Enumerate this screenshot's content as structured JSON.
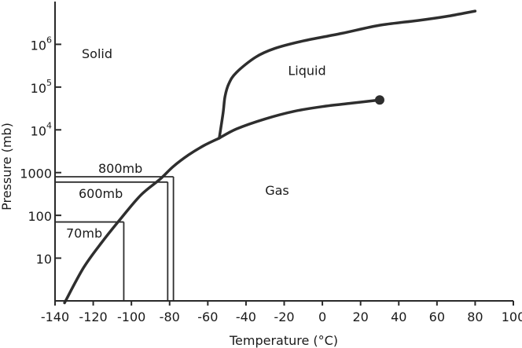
{
  "chart_data": {
    "type": "line",
    "title": "",
    "xlabel": "Temperature (°C)",
    "ylabel": "Pressure (mb)",
    "x_ticks": [
      -140,
      -120,
      -100,
      -80,
      -60,
      -40,
      -20,
      0,
      20,
      40,
      60,
      80,
      100
    ],
    "x_tick_labels": [
      "-140",
      "-120",
      "-100",
      "-80",
      "-60",
      "-40",
      "-20",
      "0",
      "20",
      "40",
      "60",
      "80",
      "100"
    ],
    "xlim": [
      -140,
      100
    ],
    "yscale": "log",
    "ylim": [
      1,
      10000000
    ],
    "y_ticks": [
      10,
      100,
      1000,
      10000,
      100000,
      1000000
    ],
    "y_tick_labels": [
      {
        "base": "10",
        "exp": ""
      },
      {
        "base": "100",
        "exp": ""
      },
      {
        "base": "1000",
        "exp": ""
      },
      {
        "base": "10",
        "exp": "4"
      },
      {
        "base": "10",
        "exp": "5"
      },
      {
        "base": "10",
        "exp": "6"
      }
    ],
    "grid": false,
    "series": [
      {
        "role": "solid-gas",
        "points": [
          [
            -135,
            0.9
          ],
          [
            -125,
            6
          ],
          [
            -115,
            25
          ],
          [
            -105,
            90
          ],
          [
            -95,
            300
          ],
          [
            -85,
            700
          ],
          [
            -78,
            1400
          ],
          [
            -70,
            2600
          ],
          [
            -62,
            4300
          ],
          [
            -54,
            6400
          ]
        ]
      },
      {
        "role": "liquid-gas",
        "points": [
          [
            -54,
            6400
          ],
          [
            -45,
            10500
          ],
          [
            -30,
            18000
          ],
          [
            -15,
            27000
          ],
          [
            0,
            35000
          ],
          [
            15,
            42000
          ],
          [
            30,
            50000
          ]
        ]
      },
      {
        "role": "solid-liquid",
        "points": [
          [
            -54,
            6400
          ],
          [
            -52,
            25000
          ],
          [
            -51,
            60000
          ],
          [
            -49,
            120000
          ],
          [
            -45,
            220000
          ],
          [
            -35,
            500000
          ],
          [
            -25,
            800000
          ],
          [
            -10,
            1200000
          ],
          [
            10,
            1800000
          ],
          [
            30,
            2800000
          ],
          [
            50,
            3600000
          ],
          [
            65,
            4500000
          ],
          [
            80,
            6000000
          ]
        ]
      }
    ],
    "critical_point": {
      "x": 30,
      "y": 50000
    },
    "regions": [
      {
        "label": "Solid",
        "x": -126,
        "y": 480000
      },
      {
        "label": "Liquid",
        "x": -18,
        "y": 190000
      },
      {
        "label": "Gas",
        "x": -30,
        "y": 300
      }
    ],
    "annotations": [
      {
        "label": "800mb",
        "temp": -78,
        "pressure": 800
      },
      {
        "label": "600mb",
        "temp": -81,
        "pressure": 600
      },
      {
        "label": "70mb",
        "temp": -104,
        "pressure": 70
      }
    ]
  }
}
